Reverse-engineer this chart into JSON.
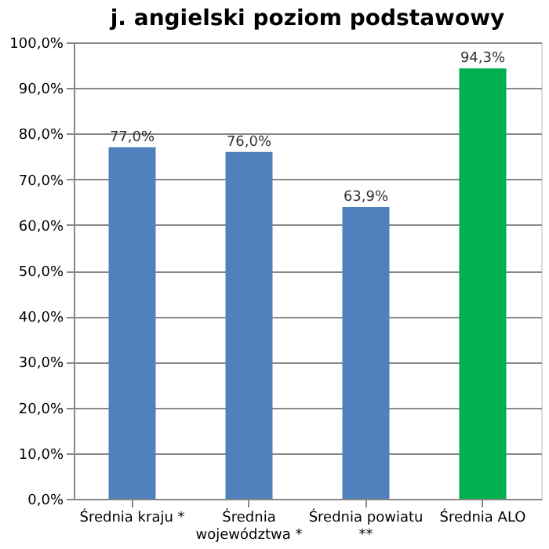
{
  "chart_data": {
    "type": "bar",
    "title": "j. angielski poziom podstawowy",
    "categories": [
      "Średnia kraju *",
      "Średnia województwa *",
      "Średnia powiatu **",
      "Średnia ALO"
    ],
    "values": [
      77.0,
      76.0,
      63.9,
      94.3
    ],
    "colors": [
      "#4f81bd",
      "#4f81bd",
      "#4f81bd",
      "#00b050"
    ],
    "value_labels": [
      "77,0%",
      "76,0%",
      "63,9%",
      "94,3%"
    ],
    "ylim": [
      0,
      100
    ],
    "yticks": [
      {
        "value": 0,
        "label": "0,0%"
      },
      {
        "value": 10,
        "label": "10,0%"
      },
      {
        "value": 20,
        "label": "20,0%"
      },
      {
        "value": 30,
        "label": "30,0%"
      },
      {
        "value": 40,
        "label": "40,0%"
      },
      {
        "value": 50,
        "label": "50,0%"
      },
      {
        "value": 60,
        "label": "60,0%"
      },
      {
        "value": 70,
        "label": "70,0%"
      },
      {
        "value": 80,
        "label": "80,0%"
      },
      {
        "value": 90,
        "label": "90,0%"
      },
      {
        "value": 100,
        "label": "100,0%"
      }
    ],
    "grid": "y"
  }
}
